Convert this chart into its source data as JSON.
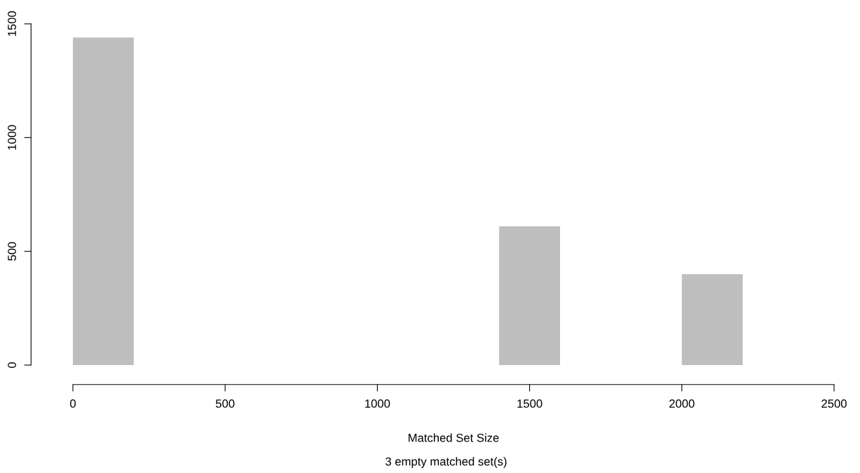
{
  "chart_data": {
    "type": "histogram",
    "xlabel": "Matched Set Size",
    "annotations": [
      "3 empty matched set(s)"
    ],
    "bins": [
      0,
      200,
      400,
      600,
      800,
      1000,
      1200,
      1400,
      1600,
      1800,
      2000,
      2200
    ],
    "values": [
      1440,
      0,
      0,
      0,
      0,
      0,
      0,
      610,
      0,
      0,
      400
    ],
    "color": "#bebebe",
    "xlim": [
      0,
      2500
    ],
    "ylim": [
      0,
      1500
    ],
    "xticks": [
      0,
      500,
      1000,
      1500,
      2000,
      2500
    ],
    "yticks": [
      0,
      500,
      1000,
      1500
    ],
    "grid": false
  }
}
